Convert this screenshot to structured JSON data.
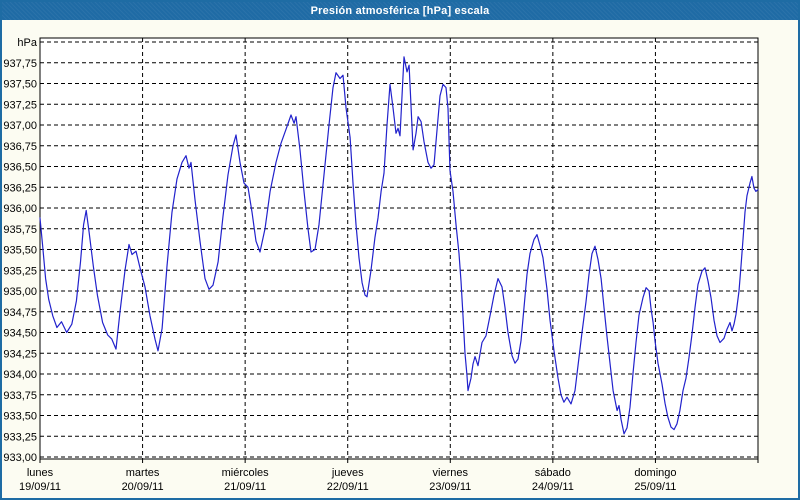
{
  "header": {
    "title": "Presión atmosférica [hPa] escala"
  },
  "colors": {
    "titlebar": "#1F6BA5",
    "window_border": "#1E6CA4",
    "window_background": "#FCFCF2",
    "plot_background": "#FFFFFF",
    "grid": "#000000",
    "line": "#2222CC",
    "label_text": "#000000"
  },
  "chart_data": {
    "type": "line",
    "title": "Presión atmosférica [hPa] escala",
    "unit_label": "hPa",
    "ylabel": "hPa",
    "ylim": [
      933.0,
      938.0
    ],
    "ytick_step": 0.25,
    "grid": "dashed",
    "legend": "none",
    "y_ticks": [
      {
        "v": 937.75,
        "label": "937,75"
      },
      {
        "v": 937.5,
        "label": "937,50"
      },
      {
        "v": 937.25,
        "label": "937,25"
      },
      {
        "v": 937.0,
        "label": "937,00"
      },
      {
        "v": 936.75,
        "label": "936,75"
      },
      {
        "v": 936.5,
        "label": "936,50"
      },
      {
        "v": 936.25,
        "label": "936,25"
      },
      {
        "v": 936.0,
        "label": "936,00"
      },
      {
        "v": 935.75,
        "label": "935,75"
      },
      {
        "v": 935.5,
        "label": "935,50"
      },
      {
        "v": 935.25,
        "label": "935,25"
      },
      {
        "v": 935.0,
        "label": "935,00"
      },
      {
        "v": 934.75,
        "label": "934,75"
      },
      {
        "v": 934.5,
        "label": "934,50"
      },
      {
        "v": 934.25,
        "label": "934,25"
      },
      {
        "v": 934.0,
        "label": "934,00"
      },
      {
        "v": 933.75,
        "label": "933,75"
      },
      {
        "v": 933.5,
        "label": "933,50"
      },
      {
        "v": 933.25,
        "label": "933,25"
      },
      {
        "v": 933.0,
        "label": "933,00"
      }
    ],
    "days": [
      {
        "name": "lunes",
        "date": "19/09/11"
      },
      {
        "name": "martes",
        "date": "20/09/11"
      },
      {
        "name": "miércoles",
        "date": "21/09/11"
      },
      {
        "name": "jueves",
        "date": "22/09/11"
      },
      {
        "name": "viernes",
        "date": "23/09/11"
      },
      {
        "name": "sábado",
        "date": "24/09/11"
      },
      {
        "name": "domingo",
        "date": "25/09/11"
      }
    ],
    "x_range_days": [
      0,
      7
    ],
    "series": [
      {
        "name": "Presión atmosférica",
        "points": [
          [
            0.0,
            935.88
          ],
          [
            0.025,
            935.55
          ],
          [
            0.055,
            935.15
          ],
          [
            0.085,
            934.9
          ],
          [
            0.125,
            934.7
          ],
          [
            0.165,
            934.56
          ],
          [
            0.21,
            934.63
          ],
          [
            0.26,
            934.5
          ],
          [
            0.31,
            934.6
          ],
          [
            0.355,
            934.88
          ],
          [
            0.395,
            935.35
          ],
          [
            0.425,
            935.8
          ],
          [
            0.45,
            935.97
          ],
          [
            0.48,
            935.7
          ],
          [
            0.52,
            935.3
          ],
          [
            0.56,
            934.95
          ],
          [
            0.61,
            934.62
          ],
          [
            0.66,
            934.47
          ],
          [
            0.7,
            934.42
          ],
          [
            0.741,
            934.3
          ],
          [
            0.78,
            934.75
          ],
          [
            0.829,
            935.25
          ],
          [
            0.868,
            935.56
          ],
          [
            0.897,
            935.44
          ],
          [
            0.936,
            935.48
          ],
          [
            0.975,
            935.28
          ],
          [
            1.024,
            935.05
          ],
          [
            1.072,
            934.7
          ],
          [
            1.121,
            934.42
          ],
          [
            1.15,
            934.28
          ],
          [
            1.19,
            934.55
          ],
          [
            1.238,
            935.3
          ],
          [
            1.287,
            935.95
          ],
          [
            1.336,
            936.35
          ],
          [
            1.384,
            936.55
          ],
          [
            1.423,
            936.63
          ],
          [
            1.453,
            936.48
          ],
          [
            1.472,
            936.55
          ],
          [
            1.511,
            936.1
          ],
          [
            1.56,
            935.6
          ],
          [
            1.609,
            935.15
          ],
          [
            1.648,
            935.02
          ],
          [
            1.687,
            935.07
          ],
          [
            1.736,
            935.35
          ],
          [
            1.784,
            935.9
          ],
          [
            1.833,
            936.4
          ],
          [
            1.882,
            936.75
          ],
          [
            1.911,
            936.88
          ],
          [
            1.95,
            936.55
          ],
          [
            1.989,
            936.3
          ],
          [
            2.028,
            936.25
          ],
          [
            2.067,
            935.95
          ],
          [
            2.106,
            935.6
          ],
          [
            2.145,
            935.47
          ],
          [
            2.194,
            935.75
          ],
          [
            2.243,
            936.2
          ],
          [
            2.301,
            936.55
          ],
          [
            2.35,
            936.78
          ],
          [
            2.399,
            936.95
          ],
          [
            2.447,
            937.12
          ],
          [
            2.477,
            937.02
          ],
          [
            2.496,
            937.1
          ],
          [
            2.535,
            936.7
          ],
          [
            2.574,
            936.2
          ],
          [
            2.613,
            935.75
          ],
          [
            2.642,
            935.47
          ],
          [
            2.681,
            935.5
          ],
          [
            2.72,
            935.8
          ],
          [
            2.769,
            936.4
          ],
          [
            2.818,
            937.0
          ],
          [
            2.857,
            937.45
          ],
          [
            2.886,
            937.63
          ],
          [
            2.925,
            937.56
          ],
          [
            2.954,
            937.6
          ],
          [
            2.984,
            937.2
          ],
          [
            3.023,
            936.85
          ],
          [
            3.052,
            936.3
          ],
          [
            3.081,
            935.8
          ],
          [
            3.11,
            935.4
          ],
          [
            3.14,
            935.1
          ],
          [
            3.169,
            934.95
          ],
          [
            3.188,
            934.93
          ],
          [
            3.227,
            935.25
          ],
          [
            3.266,
            935.65
          ],
          [
            3.295,
            935.88
          ],
          [
            3.325,
            936.2
          ],
          [
            3.354,
            936.42
          ],
          [
            3.383,
            937.0
          ],
          [
            3.412,
            937.49
          ],
          [
            3.442,
            937.2
          ],
          [
            3.471,
            936.9
          ],
          [
            3.49,
            936.96
          ],
          [
            3.51,
            936.87
          ],
          [
            3.549,
            937.82
          ],
          [
            3.578,
            937.64
          ],
          [
            3.598,
            937.72
          ],
          [
            3.637,
            936.7
          ],
          [
            3.666,
            936.9
          ],
          [
            3.686,
            937.1
          ],
          [
            3.715,
            937.04
          ],
          [
            3.744,
            936.8
          ],
          [
            3.783,
            936.55
          ],
          [
            3.812,
            936.48
          ],
          [
            3.841,
            936.52
          ],
          [
            3.871,
            936.95
          ],
          [
            3.9,
            937.35
          ],
          [
            3.929,
            937.49
          ],
          [
            3.958,
            937.45
          ],
          [
            3.978,
            937.2
          ],
          [
            3.997,
            936.45
          ],
          [
            4.026,
            936.2
          ],
          [
            4.056,
            935.8
          ],
          [
            4.085,
            935.45
          ],
          [
            4.104,
            935.12
          ],
          [
            4.124,
            934.7
          ],
          [
            4.143,
            934.25
          ],
          [
            4.163,
            933.98
          ],
          [
            4.173,
            933.8
          ],
          [
            4.202,
            933.95
          ],
          [
            4.221,
            934.12
          ],
          [
            4.241,
            934.21
          ],
          [
            4.27,
            934.1
          ],
          [
            4.309,
            934.38
          ],
          [
            4.348,
            934.46
          ],
          [
            4.387,
            934.7
          ],
          [
            4.426,
            934.95
          ],
          [
            4.465,
            935.15
          ],
          [
            4.504,
            935.05
          ],
          [
            4.533,
            934.8
          ],
          [
            4.563,
            934.5
          ],
          [
            4.602,
            934.22
          ],
          [
            4.631,
            934.13
          ],
          [
            4.66,
            934.18
          ],
          [
            4.689,
            934.4
          ],
          [
            4.719,
            934.8
          ],
          [
            4.748,
            935.2
          ],
          [
            4.777,
            935.45
          ],
          [
            4.816,
            935.62
          ],
          [
            4.845,
            935.68
          ],
          [
            4.875,
            935.55
          ],
          [
            4.904,
            935.4
          ],
          [
            4.943,
            935.02
          ],
          [
            4.972,
            934.65
          ],
          [
            5.011,
            934.28
          ],
          [
            5.05,
            933.95
          ],
          [
            5.079,
            933.75
          ],
          [
            5.108,
            933.66
          ],
          [
            5.138,
            933.72
          ],
          [
            5.177,
            933.64
          ],
          [
            5.216,
            933.8
          ],
          [
            5.245,
            934.1
          ],
          [
            5.284,
            934.5
          ],
          [
            5.323,
            934.87
          ],
          [
            5.352,
            935.2
          ],
          [
            5.382,
            935.45
          ],
          [
            5.411,
            935.54
          ],
          [
            5.44,
            935.38
          ],
          [
            5.47,
            935.15
          ],
          [
            5.499,
            934.8
          ],
          [
            5.528,
            934.45
          ],
          [
            5.557,
            934.13
          ],
          [
            5.587,
            933.8
          ],
          [
            5.626,
            933.56
          ],
          [
            5.645,
            933.62
          ],
          [
            5.665,
            933.45
          ],
          [
            5.694,
            933.28
          ],
          [
            5.723,
            933.35
          ],
          [
            5.752,
            933.6
          ],
          [
            5.782,
            934.02
          ],
          [
            5.811,
            934.38
          ],
          [
            5.84,
            934.71
          ],
          [
            5.879,
            934.92
          ],
          [
            5.909,
            935.04
          ],
          [
            5.938,
            935.0
          ],
          [
            5.957,
            934.79
          ],
          [
            5.977,
            934.62
          ],
          [
            5.996,
            934.4
          ],
          [
            6.025,
            934.13
          ],
          [
            6.064,
            933.88
          ],
          [
            6.093,
            933.65
          ],
          [
            6.122,
            933.48
          ],
          [
            6.152,
            933.36
          ],
          [
            6.181,
            933.33
          ],
          [
            6.21,
            933.4
          ],
          [
            6.239,
            933.56
          ],
          [
            6.269,
            933.8
          ],
          [
            6.298,
            933.95
          ],
          [
            6.327,
            934.2
          ],
          [
            6.356,
            934.47
          ],
          [
            6.386,
            934.8
          ],
          [
            6.415,
            935.08
          ],
          [
            6.454,
            935.24
          ],
          [
            6.483,
            935.28
          ],
          [
            6.513,
            935.12
          ],
          [
            6.542,
            934.92
          ],
          [
            6.571,
            934.65
          ],
          [
            6.6,
            934.46
          ],
          [
            6.63,
            934.38
          ],
          [
            6.669,
            934.43
          ],
          [
            6.698,
            934.54
          ],
          [
            6.727,
            934.62
          ],
          [
            6.747,
            934.52
          ],
          [
            6.766,
            934.6
          ],
          [
            6.786,
            934.72
          ],
          [
            6.815,
            935.0
          ],
          [
            6.834,
            935.3
          ],
          [
            6.854,
            935.62
          ],
          [
            6.873,
            935.95
          ],
          [
            6.893,
            936.15
          ],
          [
            6.922,
            936.3
          ],
          [
            6.941,
            936.38
          ],
          [
            6.961,
            936.24
          ],
          [
            6.98,
            936.2
          ],
          [
            7.0,
            936.22
          ]
        ]
      }
    ]
  }
}
